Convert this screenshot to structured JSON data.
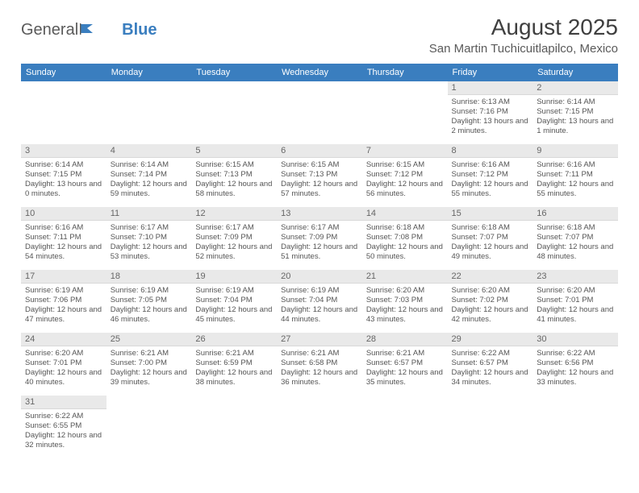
{
  "logo": {
    "part1": "General",
    "part2": "Blue"
  },
  "title": "August 2025",
  "location": "San Martin Tuchicuitlapilco, Mexico",
  "colors": {
    "header_bg": "#3a7ebf",
    "header_text": "#ffffff",
    "daynum_bg": "#e9e9e9",
    "text": "#555555",
    "title_text": "#3f3f3f"
  },
  "day_labels": [
    "Sunday",
    "Monday",
    "Tuesday",
    "Wednesday",
    "Thursday",
    "Friday",
    "Saturday"
  ],
  "weeks": [
    [
      {
        "n": "",
        "info": ""
      },
      {
        "n": "",
        "info": ""
      },
      {
        "n": "",
        "info": ""
      },
      {
        "n": "",
        "info": ""
      },
      {
        "n": "",
        "info": ""
      },
      {
        "n": "1",
        "info": "Sunrise: 6:13 AM\nSunset: 7:16 PM\nDaylight: 13 hours and 2 minutes."
      },
      {
        "n": "2",
        "info": "Sunrise: 6:14 AM\nSunset: 7:15 PM\nDaylight: 13 hours and 1 minute."
      }
    ],
    [
      {
        "n": "3",
        "info": "Sunrise: 6:14 AM\nSunset: 7:15 PM\nDaylight: 13 hours and 0 minutes."
      },
      {
        "n": "4",
        "info": "Sunrise: 6:14 AM\nSunset: 7:14 PM\nDaylight: 12 hours and 59 minutes."
      },
      {
        "n": "5",
        "info": "Sunrise: 6:15 AM\nSunset: 7:13 PM\nDaylight: 12 hours and 58 minutes."
      },
      {
        "n": "6",
        "info": "Sunrise: 6:15 AM\nSunset: 7:13 PM\nDaylight: 12 hours and 57 minutes."
      },
      {
        "n": "7",
        "info": "Sunrise: 6:15 AM\nSunset: 7:12 PM\nDaylight: 12 hours and 56 minutes."
      },
      {
        "n": "8",
        "info": "Sunrise: 6:16 AM\nSunset: 7:12 PM\nDaylight: 12 hours and 55 minutes."
      },
      {
        "n": "9",
        "info": "Sunrise: 6:16 AM\nSunset: 7:11 PM\nDaylight: 12 hours and 55 minutes."
      }
    ],
    [
      {
        "n": "10",
        "info": "Sunrise: 6:16 AM\nSunset: 7:11 PM\nDaylight: 12 hours and 54 minutes."
      },
      {
        "n": "11",
        "info": "Sunrise: 6:17 AM\nSunset: 7:10 PM\nDaylight: 12 hours and 53 minutes."
      },
      {
        "n": "12",
        "info": "Sunrise: 6:17 AM\nSunset: 7:09 PM\nDaylight: 12 hours and 52 minutes."
      },
      {
        "n": "13",
        "info": "Sunrise: 6:17 AM\nSunset: 7:09 PM\nDaylight: 12 hours and 51 minutes."
      },
      {
        "n": "14",
        "info": "Sunrise: 6:18 AM\nSunset: 7:08 PM\nDaylight: 12 hours and 50 minutes."
      },
      {
        "n": "15",
        "info": "Sunrise: 6:18 AM\nSunset: 7:07 PM\nDaylight: 12 hours and 49 minutes."
      },
      {
        "n": "16",
        "info": "Sunrise: 6:18 AM\nSunset: 7:07 PM\nDaylight: 12 hours and 48 minutes."
      }
    ],
    [
      {
        "n": "17",
        "info": "Sunrise: 6:19 AM\nSunset: 7:06 PM\nDaylight: 12 hours and 47 minutes."
      },
      {
        "n": "18",
        "info": "Sunrise: 6:19 AM\nSunset: 7:05 PM\nDaylight: 12 hours and 46 minutes."
      },
      {
        "n": "19",
        "info": "Sunrise: 6:19 AM\nSunset: 7:04 PM\nDaylight: 12 hours and 45 minutes."
      },
      {
        "n": "20",
        "info": "Sunrise: 6:19 AM\nSunset: 7:04 PM\nDaylight: 12 hours and 44 minutes."
      },
      {
        "n": "21",
        "info": "Sunrise: 6:20 AM\nSunset: 7:03 PM\nDaylight: 12 hours and 43 minutes."
      },
      {
        "n": "22",
        "info": "Sunrise: 6:20 AM\nSunset: 7:02 PM\nDaylight: 12 hours and 42 minutes."
      },
      {
        "n": "23",
        "info": "Sunrise: 6:20 AM\nSunset: 7:01 PM\nDaylight: 12 hours and 41 minutes."
      }
    ],
    [
      {
        "n": "24",
        "info": "Sunrise: 6:20 AM\nSunset: 7:01 PM\nDaylight: 12 hours and 40 minutes."
      },
      {
        "n": "25",
        "info": "Sunrise: 6:21 AM\nSunset: 7:00 PM\nDaylight: 12 hours and 39 minutes."
      },
      {
        "n": "26",
        "info": "Sunrise: 6:21 AM\nSunset: 6:59 PM\nDaylight: 12 hours and 38 minutes."
      },
      {
        "n": "27",
        "info": "Sunrise: 6:21 AM\nSunset: 6:58 PM\nDaylight: 12 hours and 36 minutes."
      },
      {
        "n": "28",
        "info": "Sunrise: 6:21 AM\nSunset: 6:57 PM\nDaylight: 12 hours and 35 minutes."
      },
      {
        "n": "29",
        "info": "Sunrise: 6:22 AM\nSunset: 6:57 PM\nDaylight: 12 hours and 34 minutes."
      },
      {
        "n": "30",
        "info": "Sunrise: 6:22 AM\nSunset: 6:56 PM\nDaylight: 12 hours and 33 minutes."
      }
    ],
    [
      {
        "n": "31",
        "info": "Sunrise: 6:22 AM\nSunset: 6:55 PM\nDaylight: 12 hours and 32 minutes."
      },
      {
        "n": "",
        "info": ""
      },
      {
        "n": "",
        "info": ""
      },
      {
        "n": "",
        "info": ""
      },
      {
        "n": "",
        "info": ""
      },
      {
        "n": "",
        "info": ""
      },
      {
        "n": "",
        "info": ""
      }
    ]
  ]
}
